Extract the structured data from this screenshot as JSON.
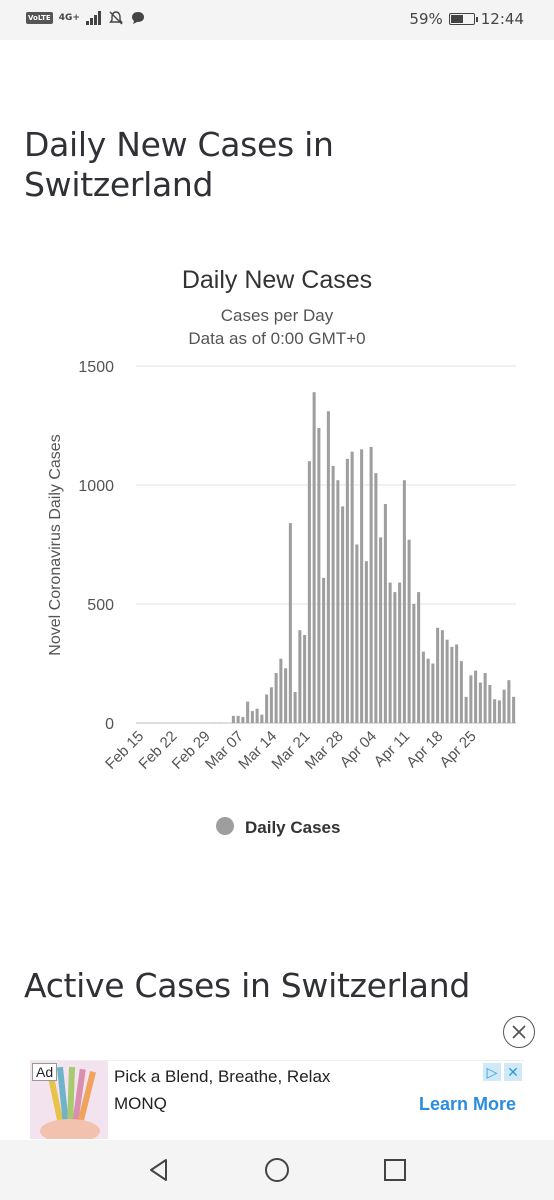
{
  "status_bar": {
    "volte": "VoLTE",
    "network": "4G+",
    "battery": "59%",
    "battery_level": 0.59,
    "time": "12:44"
  },
  "section1": {
    "title": "Daily New Cases in\nSwitzerland"
  },
  "section2": {
    "title": "Active Cases in Switzerland"
  },
  "chart_data": {
    "type": "bar",
    "title": "Daily New Cases",
    "subtitle": "Cases per Day",
    "subtitle2": "Data as of 0:00 GMT+0",
    "ylabel": "Novel Coronavirus Daily Cases",
    "xlabel": "",
    "ylim": [
      0,
      1500
    ],
    "yticks": [
      0,
      500,
      1000,
      1500
    ],
    "grid": true,
    "legend_position": "bottom",
    "x_start": "Feb 15",
    "xtick_labels": [
      "Feb 15",
      "Feb 22",
      "Feb 29",
      "Mar 07",
      "Mar 14",
      "Mar 21",
      "Mar 28",
      "Apr 04",
      "Apr 11",
      "Apr 18",
      "Apr 25"
    ],
    "series": [
      {
        "name": "Daily Cases",
        "color": "#9e9e9e",
        "values": [
          0,
          0,
          0,
          0,
          0,
          0,
          0,
          0,
          0,
          0,
          0,
          0,
          0,
          0,
          0,
          0,
          1,
          1,
          0,
          0,
          30,
          30,
          25,
          90,
          50,
          60,
          35,
          120,
          150,
          210,
          270,
          230,
          840,
          130,
          390,
          370,
          1100,
          1390,
          1240,
          610,
          1310,
          1080,
          1020,
          910,
          1110,
          1140,
          750,
          1150,
          680,
          1160,
          1050,
          780,
          920,
          590,
          550,
          590,
          1020,
          770,
          500,
          550,
          300,
          270,
          250,
          400,
          390,
          350,
          320,
          330,
          260,
          110,
          200,
          220,
          170,
          210,
          160,
          100,
          95,
          140,
          180,
          110
        ]
      }
    ]
  },
  "ad": {
    "tag": "Ad",
    "headline": "Pick a Blend, Breathe, Relax",
    "brand": "MONQ",
    "cta": "Learn More"
  },
  "icons": {
    "close": "close-icon",
    "back": "back-triangle-icon",
    "home": "home-circle-icon",
    "recents": "recents-square-icon"
  }
}
